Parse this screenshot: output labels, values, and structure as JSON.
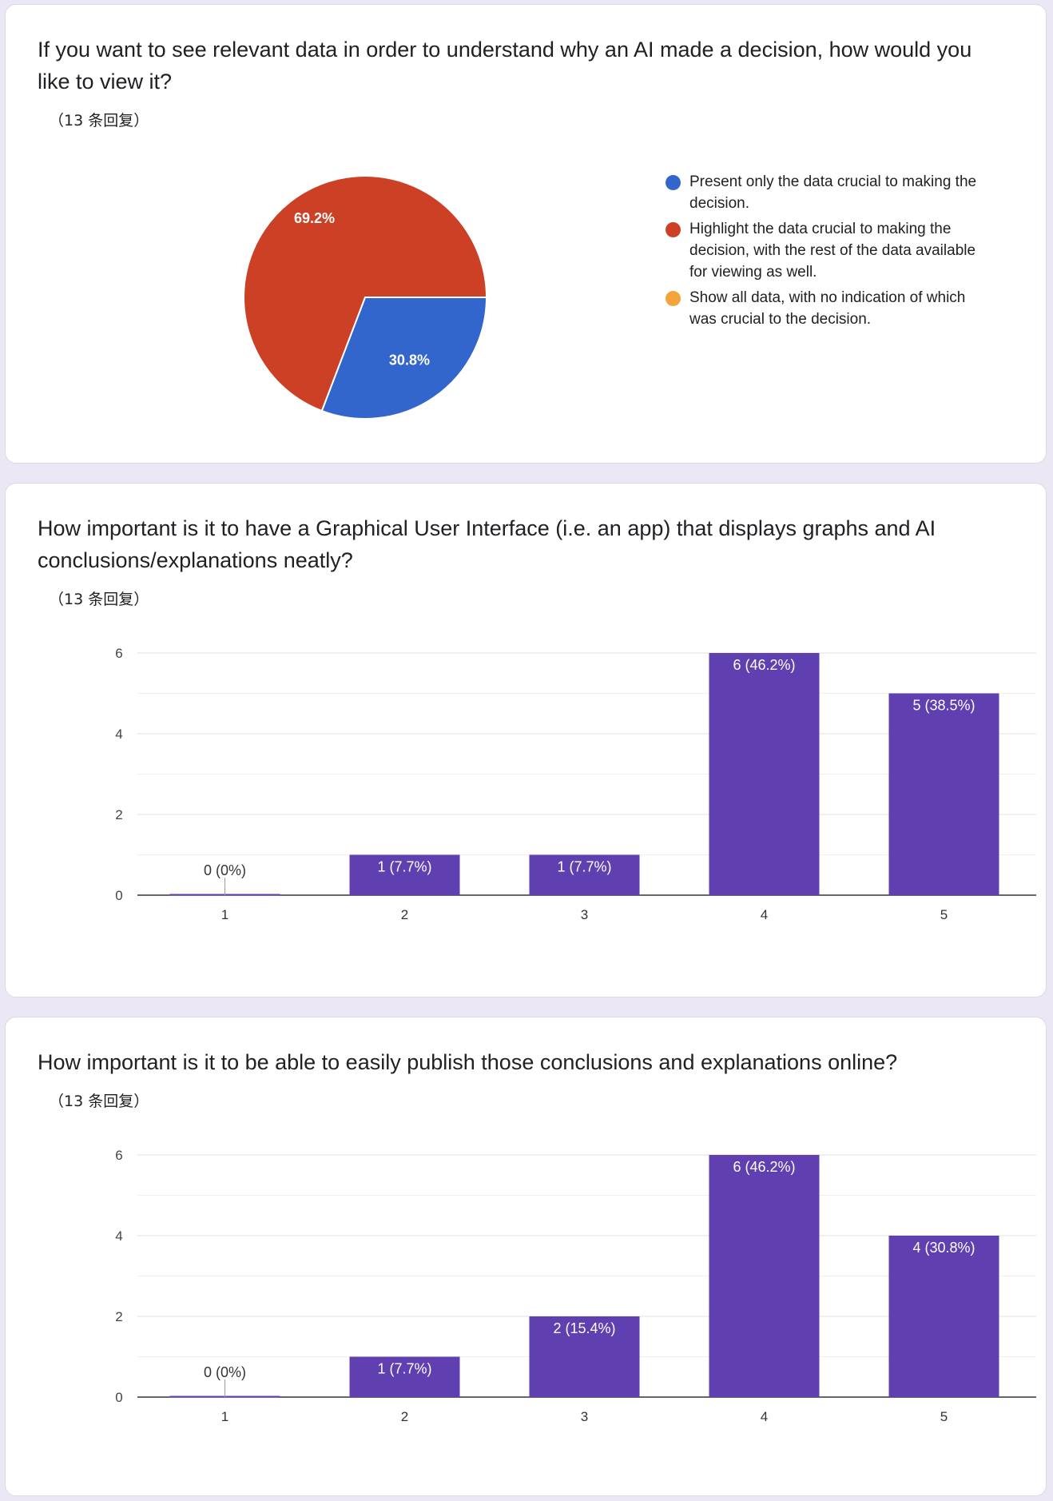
{
  "questions": [
    {
      "title": "If you want to see relevant data in order to understand why an AI made a decision, how would you like to view it?",
      "response_count": "（13 条回复）"
    },
    {
      "title": "How important is it to have a Graphical User Interface (i.e. an app) that displays graphs and AI conclusions/explanations neatly?",
      "response_count": "（13 条回复）"
    },
    {
      "title": "How important is it to be able to easily publish those conclusions and explanations online?",
      "response_count": "（13 条回复）"
    }
  ],
  "chart_data": [
    {
      "type": "pie",
      "categories": [
        "Present only the data crucial to making the decision.",
        "Highlight the data crucial to making the decision, with the rest of the data available for viewing as well.",
        "Show all data, with no indication of which was crucial to the decision."
      ],
      "values": [
        30.8,
        69.2,
        0
      ],
      "value_labels": [
        "30.8%",
        "69.2%",
        ""
      ],
      "colors": [
        "#3366cc",
        "#cc4125",
        "#f4a43a"
      ],
      "legend_position": "right"
    },
    {
      "type": "bar",
      "categories": [
        "1",
        "2",
        "3",
        "4",
        "5"
      ],
      "values": [
        0,
        1,
        1,
        6,
        5
      ],
      "value_labels": [
        "0 (0%)",
        "1 (7.7%)",
        "1 (7.7%)",
        "6 (46.2%)",
        "5 (38.5%)"
      ],
      "ylim": [
        0,
        6
      ],
      "y_ticks": [
        "0",
        "2",
        "4",
        "6"
      ],
      "color": "#6040b0",
      "grid": true
    },
    {
      "type": "bar",
      "categories": [
        "1",
        "2",
        "3",
        "4",
        "5"
      ],
      "values": [
        0,
        1,
        2,
        6,
        4
      ],
      "value_labels": [
        "0 (0%)",
        "1 (7.7%)",
        "2 (15.4%)",
        "6 (46.2%)",
        "4 (30.8%)"
      ],
      "ylim": [
        0,
        6
      ],
      "y_ticks": [
        "0",
        "2",
        "4",
        "6"
      ],
      "color": "#6040b0",
      "grid": true
    }
  ]
}
